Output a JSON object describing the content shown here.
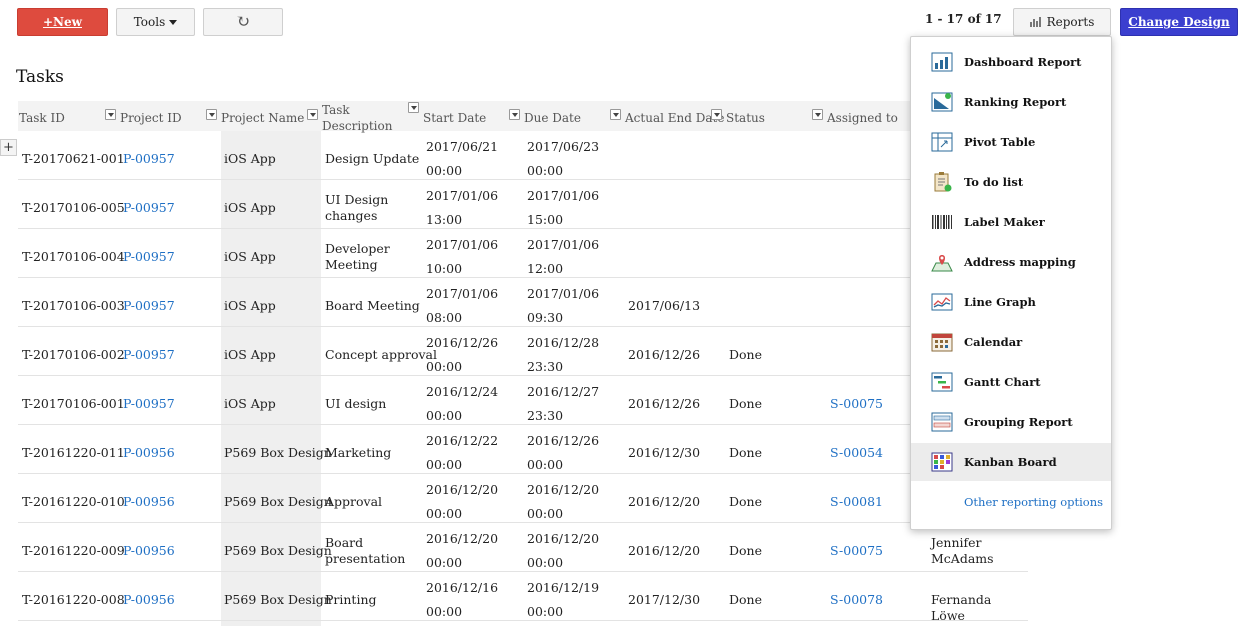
{
  "toolbar": {
    "new_label": "+New",
    "tools_label": "Tools",
    "refresh_glyph": "↻",
    "pager": "1 - 17 of 17",
    "reports_label": "Reports",
    "change_design_label": "Change Design",
    "new_color": "#de4b3e",
    "change_design_color": "#3b3fcf"
  },
  "page_title": "Tasks",
  "table": {
    "add_row_glyph": "+",
    "columns": [
      "Task ID",
      "Project ID",
      "Project Name",
      "Task Description",
      "Start Date",
      "Due Date",
      "Actual End Date",
      "Status",
      "Assigned to"
    ],
    "rows": [
      {
        "task_id": "T-20170621-001",
        "project_id": "P-00957",
        "project_name": "iOS App",
        "desc": "Design Update",
        "desc2": "",
        "start1": "2017/06/21",
        "start2": "00:00",
        "due1": "2017/06/23",
        "due2": "00:00",
        "end": "",
        "status": "",
        "assigned": "",
        "extra": ""
      },
      {
        "task_id": "T-20170106-005",
        "project_id": "P-00957",
        "project_name": "iOS App",
        "desc": "UI Design",
        "desc2": "changes",
        "start1": "2017/01/06",
        "start2": "13:00",
        "due1": "2017/01/06",
        "due2": "15:00",
        "end": "",
        "status": "",
        "assigned": "",
        "extra": ""
      },
      {
        "task_id": "T-20170106-004",
        "project_id": "P-00957",
        "project_name": "iOS App",
        "desc": "Developer",
        "desc2": "Meeting",
        "start1": "2017/01/06",
        "start2": "10:00",
        "due1": "2017/01/06",
        "due2": "12:00",
        "end": "",
        "status": "",
        "assigned": "",
        "extra": ""
      },
      {
        "task_id": "T-20170106-003",
        "project_id": "P-00957",
        "project_name": "iOS App",
        "desc": "Board Meeting",
        "desc2": "",
        "start1": "2017/01/06",
        "start2": "08:00",
        "due1": "2017/01/06",
        "due2": "09:30",
        "end": "2017/06/13",
        "status": "",
        "assigned": "",
        "extra": ""
      },
      {
        "task_id": "T-20170106-002",
        "project_id": "P-00957",
        "project_name": "iOS App",
        "desc": "Concept approval",
        "desc2": "",
        "start1": "2016/12/26",
        "start2": "00:00",
        "due1": "2016/12/28",
        "due2": "23:30",
        "end": "2016/12/26",
        "status": "Done",
        "assigned": "",
        "extra": ""
      },
      {
        "task_id": "T-20170106-001",
        "project_id": "P-00957",
        "project_name": "iOS App",
        "desc": "UI design",
        "desc2": "",
        "start1": "2016/12/24",
        "start2": "00:00",
        "due1": "2016/12/27",
        "due2": "23:30",
        "end": "2016/12/26",
        "status": "Done",
        "assigned": "S-00075",
        "extra": ""
      },
      {
        "task_id": "T-20161220-011",
        "project_id": "P-00956",
        "project_name": "P569 Box Design",
        "desc": "Marketing",
        "desc2": "",
        "start1": "2016/12/22",
        "start2": "00:00",
        "due1": "2016/12/26",
        "due2": "00:00",
        "end": "2016/12/30",
        "status": "Done",
        "assigned": "S-00054",
        "extra": ""
      },
      {
        "task_id": "T-20161220-010",
        "project_id": "P-00956",
        "project_name": "P569 Box Design",
        "desc": "Approval",
        "desc2": "",
        "start1": "2016/12/20",
        "start2": "00:00",
        "due1": "2016/12/20",
        "due2": "00:00",
        "end": "2016/12/20",
        "status": "Done",
        "assigned": "S-00081",
        "extra": ""
      },
      {
        "task_id": "T-20161220-009",
        "project_id": "P-00956",
        "project_name": "P569 Box Design",
        "desc": "Board",
        "desc2": "presentation",
        "start1": "2016/12/20",
        "start2": "00:00",
        "due1": "2016/12/20",
        "due2": "00:00",
        "end": "2016/12/20",
        "status": "Done",
        "assigned": "S-00075",
        "extra": "Jennifer McAdams"
      },
      {
        "task_id": "T-20161220-008",
        "project_id": "P-00956",
        "project_name": "P569 Box Design",
        "desc": "Printing",
        "desc2": "",
        "start1": "2016/12/16",
        "start2": "00:00",
        "due1": "2016/12/19",
        "due2": "00:00",
        "end": "2017/12/30",
        "status": "Done",
        "assigned": "S-00078",
        "extra": "Fernanda Löwe"
      }
    ]
  },
  "reports_menu": {
    "items": [
      {
        "label": "Dashboard Report",
        "icon": "dashboard-report-icon"
      },
      {
        "label": "Ranking Report",
        "icon": "ranking-report-icon"
      },
      {
        "label": "Pivot Table",
        "icon": "pivot-table-icon"
      },
      {
        "label": "To do list",
        "icon": "todo-list-icon"
      },
      {
        "label": "Label Maker",
        "icon": "barcode-icon"
      },
      {
        "label": "Address mapping",
        "icon": "map-pin-icon"
      },
      {
        "label": "Line Graph",
        "icon": "line-graph-icon"
      },
      {
        "label": "Calendar",
        "icon": "calendar-icon"
      },
      {
        "label": "Gantt Chart",
        "icon": "gantt-chart-icon"
      },
      {
        "label": "Grouping Report",
        "icon": "grouping-report-icon"
      },
      {
        "label": "Kanban Board",
        "icon": "kanban-board-icon"
      }
    ],
    "highlighted": "Kanban Board",
    "other_options": "Other reporting options"
  }
}
